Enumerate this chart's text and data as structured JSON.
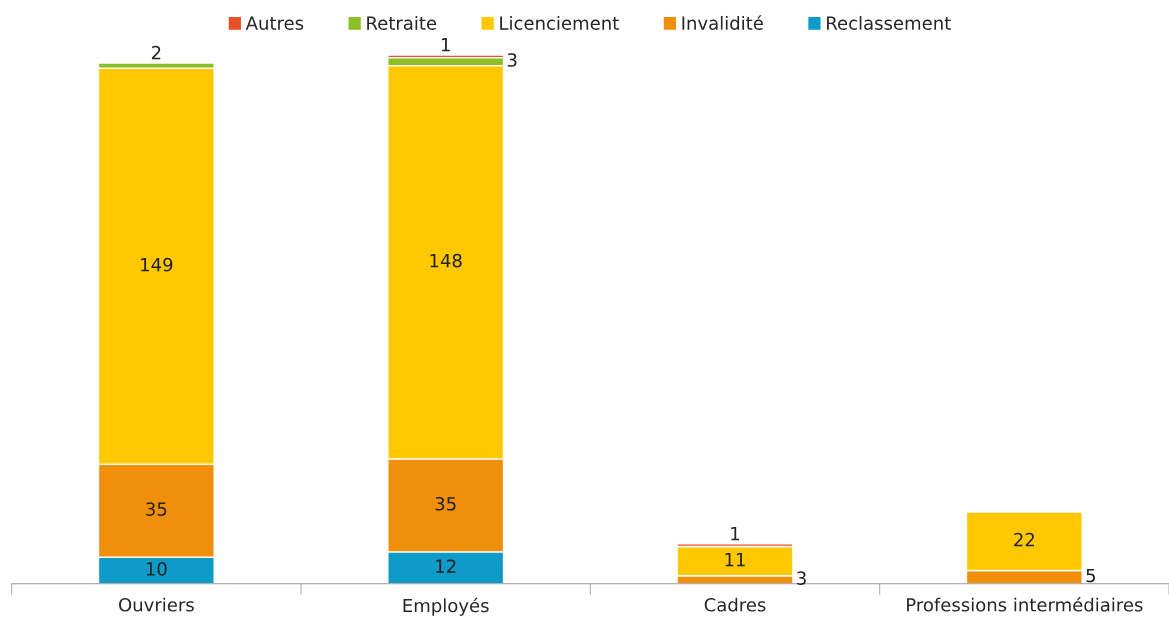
{
  "chart_data": {
    "type": "bar",
    "stacked": true,
    "data_labels": true,
    "legend": "top",
    "grid": false,
    "categories": [
      "Ouvriers",
      "Employés",
      "Cadres",
      "Professions intermédiaires"
    ],
    "series": [
      {
        "name": "Reclassement",
        "color": "#0e9bc8",
        "values": [
          10,
          12,
          null,
          null
        ]
      },
      {
        "name": "Invalidité",
        "color": "#f0900a",
        "values": [
          35,
          35,
          3,
          5
        ]
      },
      {
        "name": "Licenciement",
        "color": "#ffc800",
        "values": [
          149,
          148,
          11,
          22
        ]
      },
      {
        "name": "Retraite",
        "color": "#8cbf26",
        "values": [
          2,
          3,
          null,
          null
        ]
      },
      {
        "name": "Autres",
        "color": "#e8502a",
        "values": [
          null,
          1,
          1,
          null
        ]
      }
    ]
  }
}
